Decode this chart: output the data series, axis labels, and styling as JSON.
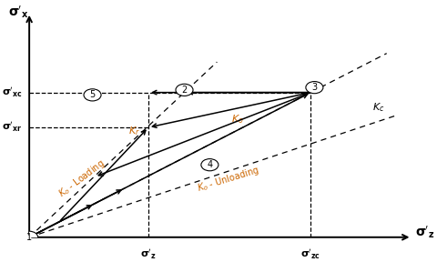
{
  "background": "#ffffff",
  "black": "#000000",
  "orange": "#cc6600",
  "figsize": [
    4.81,
    2.88
  ],
  "dpi": 100,
  "sz": 0.33,
  "szc": 0.78,
  "sxc": 0.58,
  "sxr": 0.44,
  "Kr_slope": 1.35,
  "Ko_slope": 0.744,
  "Kc_slope": 0.48,
  "Ko_unload_slope": 2.2,
  "xlim": [
    0.0,
    1.08
  ],
  "ylim": [
    0.0,
    0.92
  ]
}
